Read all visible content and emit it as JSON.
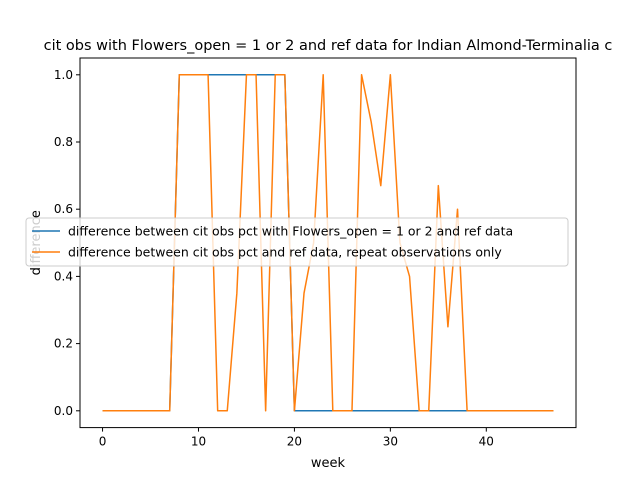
{
  "chart_data": {
    "type": "line",
    "title": "cit obs with Flowers_open = 1 or 2 and ref data for Indian Almond-Terminalia c",
    "xlabel": "week",
    "ylabel": "difference",
    "xlim": [
      -2.35,
      49.35
    ],
    "ylim": [
      -0.05,
      1.05
    ],
    "x_ticks": [
      0,
      10,
      20,
      30,
      40
    ],
    "y_ticks": [
      0.0,
      0.2,
      0.4,
      0.6,
      0.8,
      1.0
    ],
    "x_tick_labels": [
      "0",
      "10",
      "20",
      "30",
      "40"
    ],
    "y_tick_labels": [
      "0.0",
      "0.2",
      "0.4",
      "0.6",
      "0.8",
      "1.0"
    ],
    "grid": false,
    "legend_position": "center-left",
    "x": [
      0,
      1,
      2,
      3,
      4,
      5,
      6,
      7,
      8,
      9,
      10,
      11,
      12,
      13,
      14,
      15,
      16,
      17,
      18,
      19,
      20,
      21,
      22,
      23,
      24,
      25,
      26,
      27,
      28,
      29,
      30,
      31,
      32,
      33,
      34,
      35,
      36,
      37,
      38,
      39,
      40,
      41,
      42,
      43,
      44,
      45,
      46,
      47
    ],
    "series": [
      {
        "name": "difference between cit obs pct with Flowers_open = 1 or 2 and ref data",
        "color": "#1f77b4",
        "values": [
          0,
          0,
          0,
          0,
          0,
          0,
          0,
          0,
          1,
          1,
          1,
          1,
          1,
          1,
          1,
          1,
          1,
          1,
          1,
          1,
          0,
          0,
          0,
          0,
          0,
          0,
          0,
          0,
          0,
          0,
          0,
          0,
          0,
          0,
          0,
          0,
          0,
          0,
          0,
          0,
          0,
          0,
          0,
          0,
          0,
          0,
          0,
          0
        ]
      },
      {
        "name": "difference between cit obs pct and ref data, repeat observations only",
        "color": "#ff7f0e",
        "values": [
          0,
          0,
          0,
          0,
          0,
          0,
          0,
          0,
          1,
          1,
          1,
          1,
          0,
          0,
          0.35,
          1,
          1,
          0,
          1,
          1,
          0,
          0.35,
          0.5,
          1,
          0,
          0,
          0,
          1,
          0.86,
          0.67,
          1,
          0.5,
          0.4,
          0,
          0,
          0.67,
          0.25,
          0.6,
          0,
          0,
          0,
          0,
          0,
          0,
          0,
          0,
          0,
          0
        ]
      }
    ]
  }
}
